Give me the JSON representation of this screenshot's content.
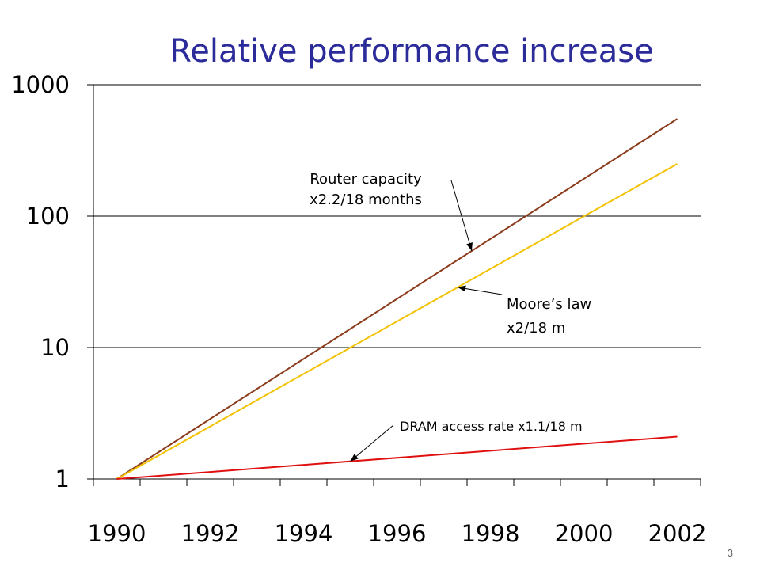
{
  "chart_data": {
    "type": "line",
    "title": "Relative performance increase",
    "xlabel": "",
    "ylabel": "",
    "y_scale": "log",
    "ylim": [
      1,
      1000
    ],
    "xlim": [
      1989.5,
      2002.5
    ],
    "y_ticks": [
      "1000",
      "100",
      "10",
      "1"
    ],
    "x_ticks": [
      "1990",
      "1992",
      "1994",
      "1996",
      "1998",
      "2000",
      "2002"
    ],
    "grid": "horizontal",
    "series": [
      {
        "id": "router",
        "color": "#8b3a1a",
        "x": [
          1990.0,
          2002.0
        ],
        "y": [
          1,
          550
        ]
      },
      {
        "id": "moore",
        "color": "#f2c200",
        "x": [
          1990.0,
          2002.0
        ],
        "y": [
          1,
          250
        ]
      },
      {
        "id": "dram",
        "color": "#e01010",
        "x": [
          1990.0,
          2002.0
        ],
        "y": [
          1,
          2.1
        ]
      }
    ],
    "annotations": [
      {
        "lines": [
          "Router capacity",
          "x2.2/18 months"
        ],
        "target": "router"
      },
      {
        "lines": [
          "Moore’s law",
          "x2/18 m"
        ],
        "target": "moore"
      },
      {
        "lines": [
          "DRAM access rate x1.1/18  m"
        ],
        "target": "dram"
      }
    ]
  },
  "page_number": "3"
}
